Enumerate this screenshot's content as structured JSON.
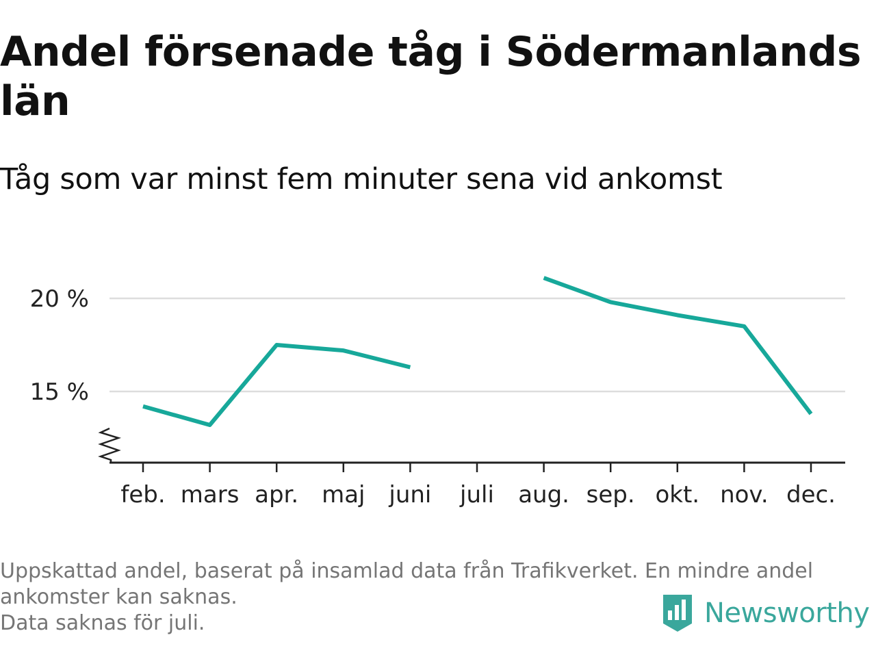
{
  "title": "Andel försenade tåg i Södermanlands län",
  "subtitle": "Tåg som var minst fem minuter sena vid ankomst",
  "footer": {
    "note1": "Uppskattad andel, baserat på insamlad data från Trafikverket. En mindre andel ankomster kan saknas.",
    "note2": "Data saknas för juli."
  },
  "brand": {
    "name": "Newsworthy",
    "icon": "newsworthy-logo-icon"
  },
  "colors": {
    "line": "#17a89a",
    "grid": "#dddddd",
    "axis": "#222222",
    "brand": "#3aa79c"
  },
  "chart_data": {
    "type": "line",
    "categories": [
      "feb.",
      "mars",
      "apr.",
      "maj",
      "juni",
      "juli",
      "aug.",
      "sep.",
      "okt.",
      "nov.",
      "dec."
    ],
    "series": [
      {
        "values": [
          14.2,
          13.2,
          17.5,
          17.2,
          16.3,
          null,
          21.1,
          19.8,
          19.1,
          18.5,
          13.8
        ]
      }
    ],
    "yticks": [
      15,
      20
    ],
    "ytick_labels": [
      "15 %",
      "20 %"
    ],
    "ylim": [
      11.3,
      22
    ],
    "y_axis_break": true,
    "grid": true,
    "xlabel": "",
    "ylabel": ""
  }
}
